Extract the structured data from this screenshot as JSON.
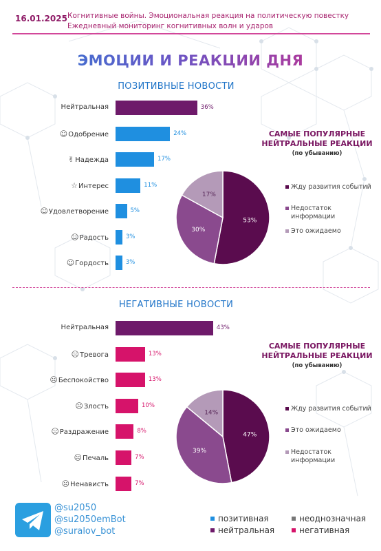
{
  "header": {
    "date": "16.01.2025",
    "line1": "Когнитивные войны. Эмоциональная реакция на политическую повестку",
    "line2": "Ежедневный мониторинг когнитивных волн и ударов"
  },
  "title": "ЭМОЦИИ И РЕАКЦИИ ДНЯ",
  "colors": {
    "positive": "#1f8fe0",
    "neutral": "#6e1a6a",
    "negative": "#d6136a",
    "ambiguous": "#777777",
    "pie_dark": "#5a0c4e",
    "pie_mid": "#8a4a8e",
    "pie_light": "#b49ab8"
  },
  "chart_data": [
    {
      "type": "bar",
      "title": "ПОЗИТИВНЫЕ НОВОСТИ",
      "categories": [
        "Нейтральная",
        "Одобрение",
        "Надежда",
        "Интерес",
        "Удовлетворение",
        "Радость",
        "Гордость"
      ],
      "icons": [
        "",
        "smile-heart-icon",
        "hands-icon",
        "star-eyes-icon",
        "satisfied-icon",
        "joy-icon",
        "proud-icon"
      ],
      "values": [
        36,
        24,
        17,
        11,
        5,
        3,
        3
      ],
      "value_labels": [
        "36%",
        "24%",
        "17%",
        "11%",
        "5%",
        "3%",
        "3%"
      ],
      "bar_colors": [
        "neutral",
        "positive",
        "positive",
        "positive",
        "positive",
        "positive",
        "positive"
      ]
    },
    {
      "type": "pie",
      "title": "САМЫЕ ПОПУЛЯРНЫЕ НЕЙТРАЛЬНЫЕ РЕАКЦИИ",
      "subtitle": "(по убыванию)",
      "slices": [
        {
          "label": "Жду развития событий",
          "value": 53,
          "value_label": "53%",
          "color": "pie_dark"
        },
        {
          "label": "Недостаток информации",
          "value": 30,
          "value_label": "30%",
          "color": "pie_mid"
        },
        {
          "label": "Это ожидаемо",
          "value": 17,
          "value_label": "17%",
          "color": "pie_light"
        }
      ],
      "legend_placement": "right"
    },
    {
      "type": "bar",
      "title": "НЕГАТИВНЫЕ НОВОСТИ",
      "categories": [
        "Нейтральная",
        "Тревога",
        "Беспокойство",
        "Злость",
        "Раздражение",
        "Печаль",
        "Ненависть"
      ],
      "icons": [
        "",
        "anxious-icon",
        "worried-icon",
        "angry-icon",
        "annoyed-icon",
        "sad-icon",
        "hate-icon"
      ],
      "values": [
        43,
        13,
        13,
        10,
        8,
        7,
        7
      ],
      "value_labels": [
        "43%",
        "13%",
        "13%",
        "10%",
        "8%",
        "7%",
        "7%"
      ],
      "bar_colors": [
        "neutral",
        "negative",
        "negative",
        "negative",
        "negative",
        "negative",
        "negative"
      ]
    },
    {
      "type": "pie",
      "title": "САМЫЕ ПОПУЛЯРНЫЕ НЕЙТРАЛЬНЫЕ РЕАКЦИИ",
      "subtitle": "(по убыванию)",
      "slices": [
        {
          "label": "Жду развития событий",
          "value": 47,
          "value_label": "47%",
          "color": "pie_dark"
        },
        {
          "label": "Это ожидаемо",
          "value": 39,
          "value_label": "39%",
          "color": "pie_mid"
        },
        {
          "label": "Недостаток информации",
          "value": 14,
          "value_label": "14%",
          "color": "pie_light"
        }
      ],
      "legend_placement": "right"
    }
  ],
  "footer": {
    "handles": [
      "@su2050",
      "@su2050emBot",
      "@suralov_bot"
    ],
    "categories": [
      {
        "label": "позитивная",
        "color": "positive"
      },
      {
        "label": "неоднозначная",
        "color": "ambiguous"
      },
      {
        "label": "нейтральная",
        "color": "neutral"
      },
      {
        "label": "негативная",
        "color": "negative"
      }
    ]
  }
}
